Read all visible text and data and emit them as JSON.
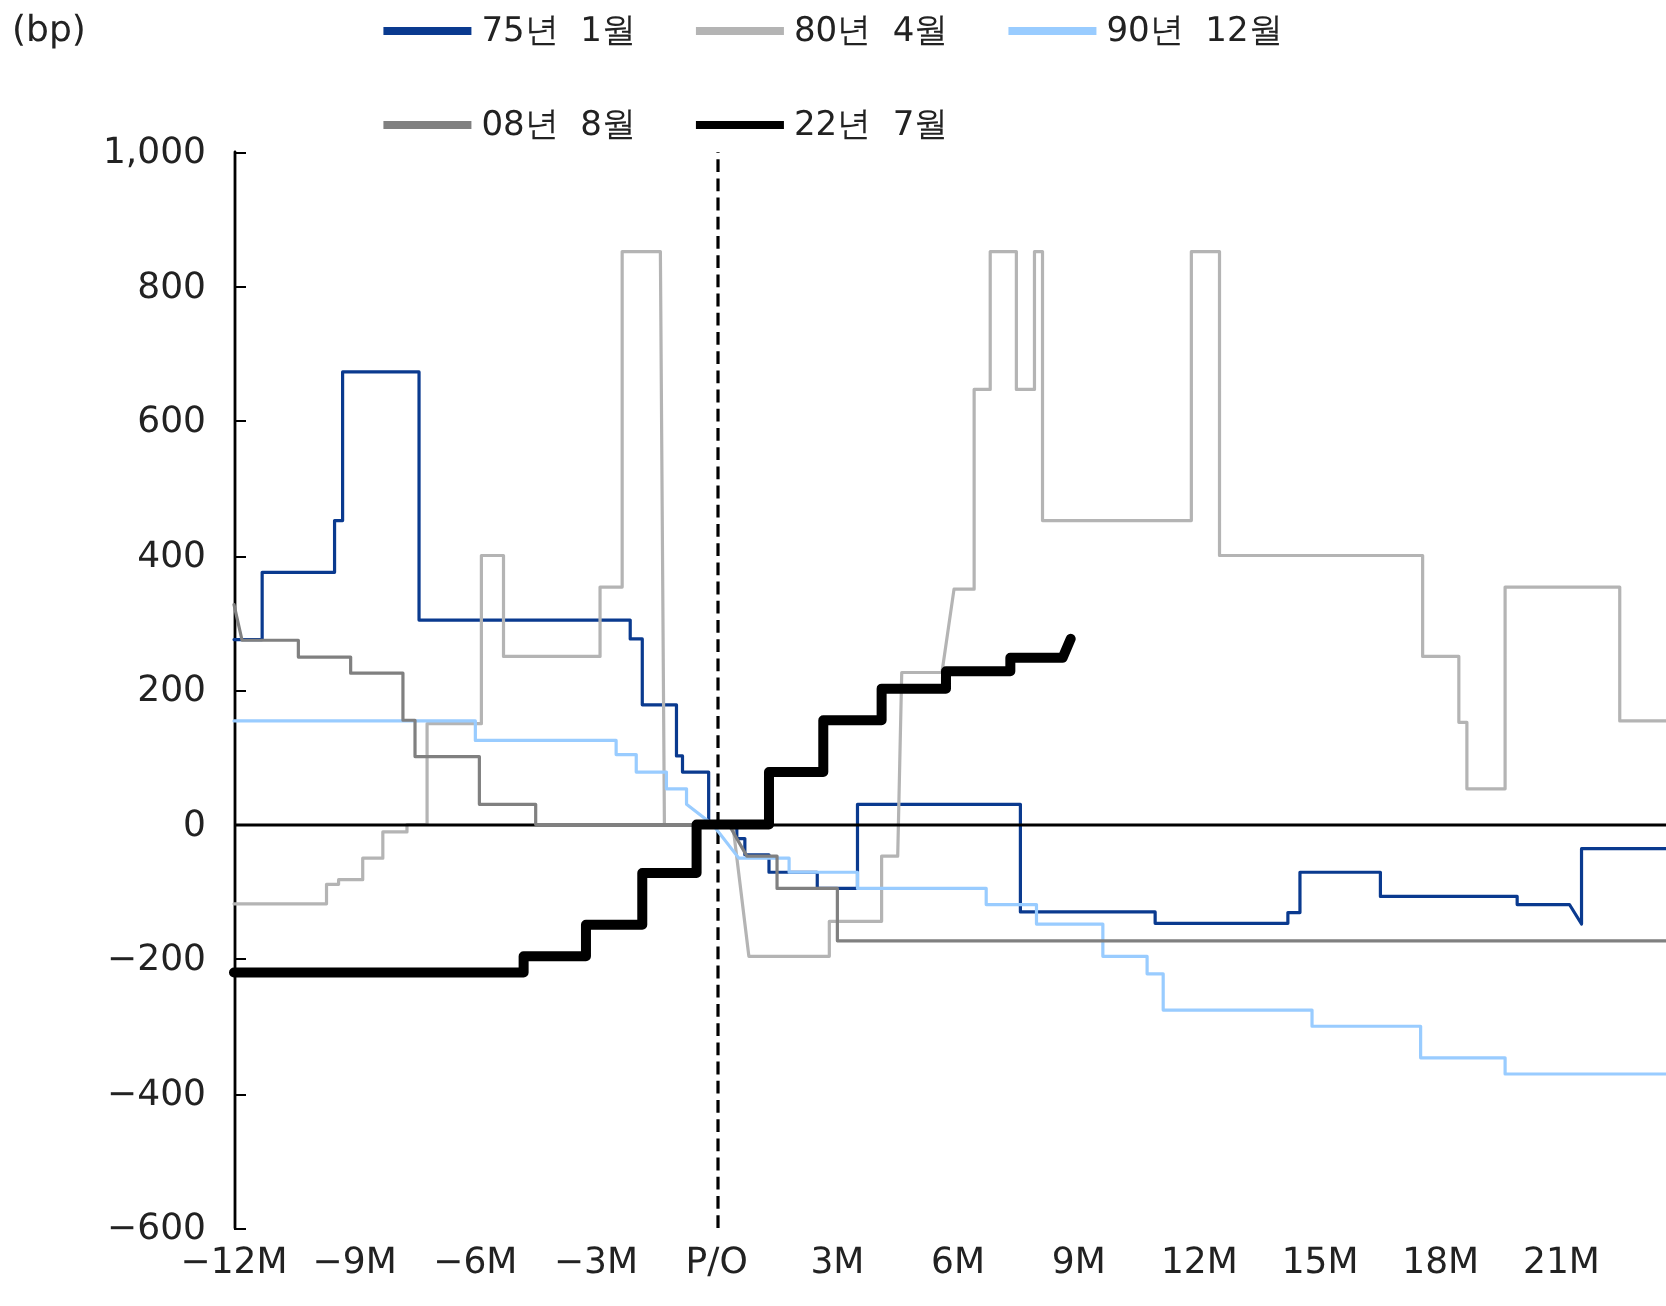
{
  "chart_data": {
    "type": "line",
    "ylabel": "(bp)",
    "xlim": [
      -12,
      23.6
    ],
    "xticks": [
      {
        "value": -12,
        "label": "−12M"
      },
      {
        "value": -9,
        "label": "−9M"
      },
      {
        "value": -6,
        "label": "−6M"
      },
      {
        "value": -3,
        "label": "−3M"
      },
      {
        "value": 0,
        "label": "P/O"
      },
      {
        "value": 3,
        "label": "3M"
      },
      {
        "value": 6,
        "label": "6M"
      },
      {
        "value": 9,
        "label": "9M"
      },
      {
        "value": 12,
        "label": "12M"
      },
      {
        "value": 15,
        "label": "15M"
      },
      {
        "value": 18,
        "label": "18M"
      },
      {
        "value": 21,
        "label": "21M"
      }
    ],
    "ylim": [
      -600,
      1000
    ],
    "yticks": [
      {
        "value": -600,
        "label": "−600"
      },
      {
        "value": -400,
        "label": "−400"
      },
      {
        "value": -200,
        "label": "−200"
      },
      0,
      200,
      400,
      600,
      800,
      {
        "value": 1000,
        "label": "1,000"
      }
    ],
    "grid": false,
    "legend": "top",
    "marker": "none",
    "line_style": "solid",
    "ref_lines": [
      {
        "axis": "y",
        "value": 0,
        "label": null,
        "color": "#000000",
        "line_style": "solid"
      },
      {
        "axis": "x",
        "value": 0,
        "label": null,
        "color": "#000000",
        "line_style": "dashed"
      }
    ],
    "series": [
      {
        "name": "75년  1월",
        "color": "#0a3a8f",
        "x": [
          -12,
          -11.3,
          -11.3,
          -9.5,
          -9.5,
          -9.3,
          -9.3,
          -7.4,
          -7.4,
          -2.15,
          -2.15,
          -1.85,
          -1.85,
          -1.0,
          -1.0,
          -0.85,
          -0.85,
          -0.2,
          -0.2,
          0.5,
          0.5,
          0.7,
          0.7,
          1.3,
          1.3,
          2.5,
          2.5,
          3.5,
          3.5,
          7.55,
          7.55,
          10.9,
          10.9,
          14.2,
          14.2,
          14.5,
          14.5,
          16.5,
          16.5,
          19.9,
          19.9,
          21.2,
          21.5,
          21.5,
          23.6
        ],
        "values": [
          275,
          275,
          375,
          375,
          452,
          452,
          673,
          673,
          304,
          304,
          276,
          276,
          178,
          178,
          102,
          102,
          78,
          78,
          0,
          0,
          -21,
          -21,
          -45,
          -45,
          -71,
          -71,
          -95,
          -95,
          30,
          30,
          -130,
          -130,
          -147,
          -147,
          -131,
          -131,
          -71,
          -71,
          -107,
          -107,
          -119,
          -119,
          -148,
          -36,
          -36
        ]
      },
      {
        "name": "80년  4월",
        "color": "#b4b4b4",
        "x": [
          -12,
          -9.7,
          -9.7,
          -9.4,
          -9.4,
          -8.8,
          -8.8,
          -8.3,
          -8.3,
          -7.7,
          -7.7,
          -7.2,
          -7.2,
          -5.85,
          -5.85,
          -5.3,
          -5.3,
          -2.9,
          -2.9,
          -2.35,
          -2.35,
          -1.4,
          -1.3,
          0.4,
          0.8,
          2.8,
          2.8,
          4.1,
          4.1,
          4.5,
          4.6,
          5.6,
          5.9,
          6.4,
          6.4,
          6.8,
          6.8,
          7.45,
          7.45,
          7.9,
          7.9,
          8.1,
          8.1,
          11.8,
          11.8,
          12.5,
          12.5,
          17.55,
          17.55,
          18.45,
          18.45,
          18.65,
          18.65,
          19.6,
          19.6,
          22.45,
          22.45,
          23.6
        ],
        "values": [
          -118,
          -118,
          -89,
          -89,
          -82,
          -82,
          -50,
          -50,
          -11,
          -11,
          0,
          0,
          150,
          150,
          400,
          400,
          250,
          250,
          353,
          353,
          852,
          852,
          0,
          0,
          -196,
          -196,
          -144,
          -144,
          -47,
          -47,
          226,
          226,
          350,
          350,
          647,
          647,
          852,
          852,
          647,
          647,
          852,
          852,
          452,
          452,
          852,
          852,
          400,
          400,
          250,
          250,
          152,
          152,
          53,
          53,
          353,
          353,
          154,
          154
        ]
      },
      {
        "name": "90년  12월",
        "color": "#99ccff",
        "x": [
          -12,
          -6.0,
          -6.0,
          -2.5,
          -2.5,
          -2.0,
          -2.0,
          -1.25,
          -1.25,
          -0.75,
          -0.75,
          -0.1,
          0.55,
          1.8,
          1.8,
          3.5,
          3.5,
          6.7,
          6.7,
          7.95,
          7.95,
          9.6,
          9.6,
          10.7,
          10.7,
          11.1,
          11.1,
          14.8,
          14.8,
          17.5,
          17.5,
          19.6,
          19.6,
          23.6
        ],
        "values": [
          154,
          154,
          125,
          125,
          104,
          104,
          78,
          78,
          53,
          53,
          30,
          0,
          -50,
          -50,
          -71,
          -71,
          -95,
          -95,
          -119,
          -119,
          -148,
          -148,
          -196,
          -196,
          -222,
          -222,
          -276,
          -276,
          -300,
          -300,
          -347,
          -347,
          -371,
          -371
        ]
      },
      {
        "name": "08년  8월",
        "color": "#808080",
        "x": [
          -12,
          -11.8,
          -11.8,
          -10.4,
          -10.4,
          -9.1,
          -9.1,
          -7.8,
          -7.8,
          -7.5,
          -7.5,
          -5.9,
          -5.9,
          -4.5,
          -4.5,
          0.3,
          0.75,
          1.5,
          1.5,
          3.0,
          3.0,
          23.6
        ],
        "values": [
          327,
          274,
          274,
          274,
          249,
          249,
          225,
          225,
          155,
          155,
          101,
          101,
          30,
          30,
          0,
          0,
          -47,
          -47,
          -95,
          -95,
          -173,
          -173
        ]
      },
      {
        "name": "22년  7월",
        "color": "#000000",
        "x": [
          -12,
          -4.8,
          -4.8,
          -3.25,
          -3.25,
          -1.85,
          -1.85,
          -0.5,
          -0.5,
          1.3,
          1.3,
          2.65,
          2.65,
          4.1,
          4.1,
          5.7,
          5.7,
          7.3,
          7.3,
          8.6,
          8.8
        ],
        "values": [
          -220,
          -220,
          -196,
          -196,
          -149,
          -149,
          -72,
          -72,
          0,
          0,
          78,
          78,
          155,
          155,
          202,
          202,
          228,
          228,
          248,
          248,
          276
        ]
      }
    ]
  }
}
